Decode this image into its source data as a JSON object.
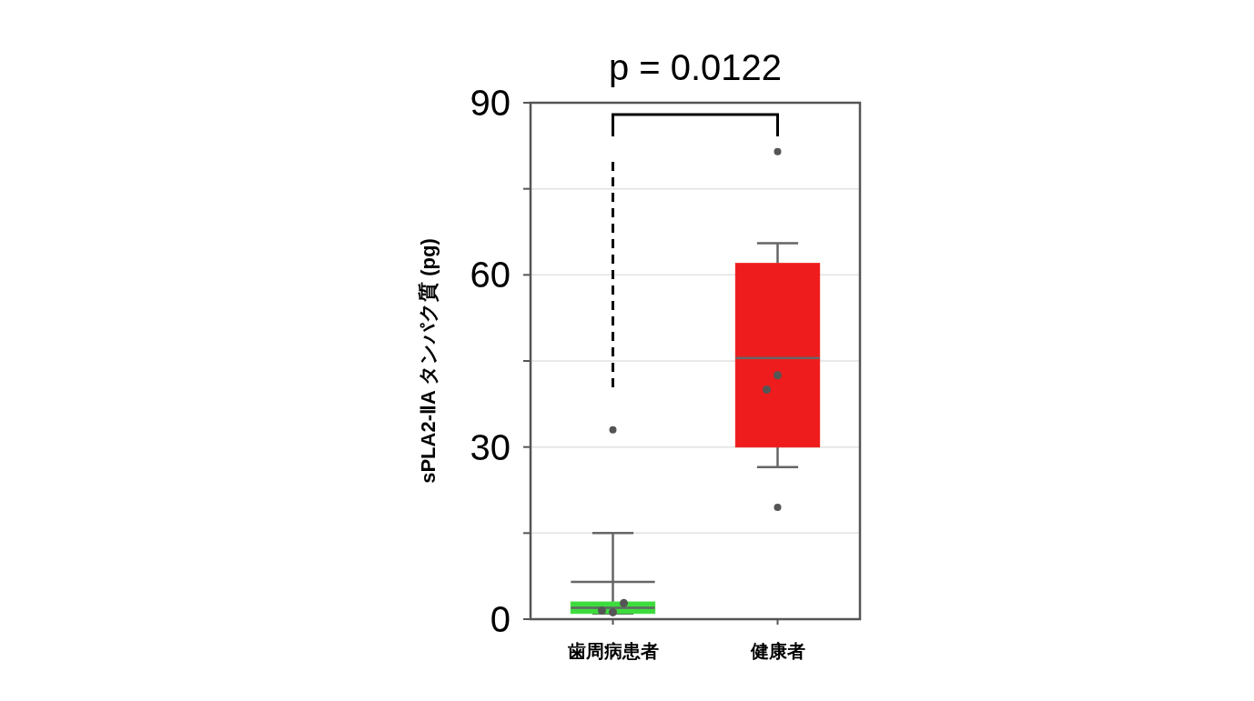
{
  "chart_data": {
    "type": "box",
    "ylabel": "sPLA2-ⅡA タンパク質 (pg)",
    "annotations": [
      "p = 0.0122"
    ],
    "categories": [
      "歯周病患者",
      "健康者"
    ],
    "series": [
      {
        "type": "box",
        "colors": [
          "#3ddc3d",
          "#ee1c1c"
        ],
        "boxes": [
          {
            "low": 1,
            "q1": 1,
            "median": 2,
            "q3": 3,
            "high": 15,
            "mean": 6.5,
            "outliers": [
              33
            ]
          },
          {
            "low": 26.5,
            "q1": 30,
            "median": 45.5,
            "q3": 62,
            "high": 65.5,
            "outliers": [
              19.5,
              81.5
            ]
          }
        ]
      },
      {
        "type": "scatter",
        "x": [
          "歯周病患者",
          "歯周病患者",
          "歯周病患者",
          "健康者",
          "健康者"
        ],
        "values": [
          1.2,
          1.5,
          2.8,
          42.5,
          40
        ],
        "color": "#555555"
      }
    ],
    "ylim": [
      0,
      90
    ],
    "yticks": [
      0,
      {
        "value": 15,
        "label": null
      },
      30,
      {
        "value": 45,
        "label": null
      },
      60,
      {
        "value": 75,
        "label": null
      },
      90
    ],
    "grid": "y"
  }
}
